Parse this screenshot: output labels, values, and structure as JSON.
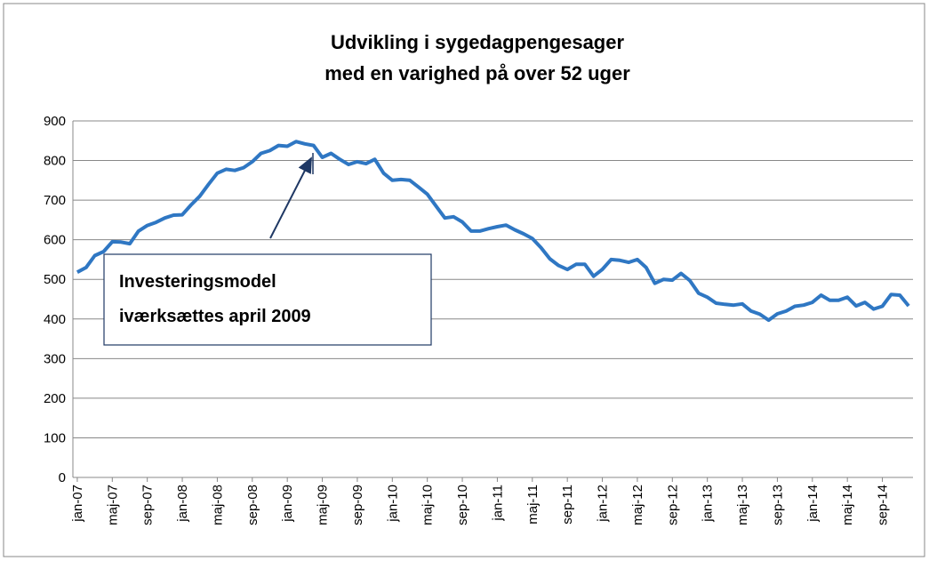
{
  "chart_data": {
    "type": "line",
    "title": [
      "Udvikling i sygedagpengesager",
      "med en varighed på over 52 uger"
    ],
    "annotation": [
      "Investeringsmodel",
      "iværksættes april 2009"
    ],
    "categories": [
      "jan-07",
      null,
      null,
      null,
      "maj-07",
      null,
      null,
      null,
      "sep-07",
      null,
      null,
      null,
      "jan-08",
      null,
      null,
      null,
      "maj-08",
      null,
      null,
      null,
      "sep-08",
      null,
      null,
      null,
      "jan-09",
      null,
      null,
      null,
      "maj-09",
      null,
      null,
      null,
      "sep-09",
      null,
      null,
      null,
      "jan-10",
      null,
      null,
      null,
      "maj-10",
      null,
      null,
      null,
      "sep-10",
      null,
      null,
      null,
      "jan-11",
      null,
      null,
      null,
      "maj-11",
      null,
      null,
      null,
      "sep-11",
      null,
      null,
      null,
      "jan-12",
      null,
      null,
      null,
      "maj-12",
      null,
      null,
      null,
      "sep-12",
      null,
      null,
      null,
      "jan-13",
      null,
      null,
      null,
      "maj-13",
      null,
      null,
      null,
      "sep-13",
      null,
      null,
      null,
      "jan-14",
      null,
      null,
      null,
      "maj-14",
      null,
      null,
      null,
      "sep-14",
      null,
      null,
      null
    ],
    "series": [
      {
        "color": "#2f77c3",
        "values": [
          518,
          530,
          560,
          570,
          595,
          594,
          590,
          622,
          636,
          644,
          655,
          662,
          663,
          688,
          710,
          740,
          768,
          778,
          775,
          782,
          797,
          818,
          825,
          838,
          836,
          848,
          842,
          838,
          808,
          818,
          803,
          790,
          797,
          792,
          803,
          768,
          750,
          752,
          750,
          733,
          715,
          685,
          655,
          658,
          645,
          622,
          622,
          628,
          633,
          637,
          625,
          615,
          603,
          580,
          552,
          535,
          525,
          538,
          538,
          508,
          525,
          550,
          548,
          543,
          550,
          530,
          490,
          500,
          498,
          515,
          497,
          465,
          455,
          440,
          437,
          435,
          438,
          420,
          412,
          397,
          413,
          420,
          432,
          435,
          442,
          460,
          447,
          447,
          455,
          433,
          442,
          425,
          432,
          462,
          460,
          433
        ]
      }
    ],
    "ylim": [
      0,
      900
    ],
    "yticks": [
      0,
      100,
      200,
      300,
      400,
      500,
      600,
      700,
      800,
      900
    ],
    "grid": true
  }
}
